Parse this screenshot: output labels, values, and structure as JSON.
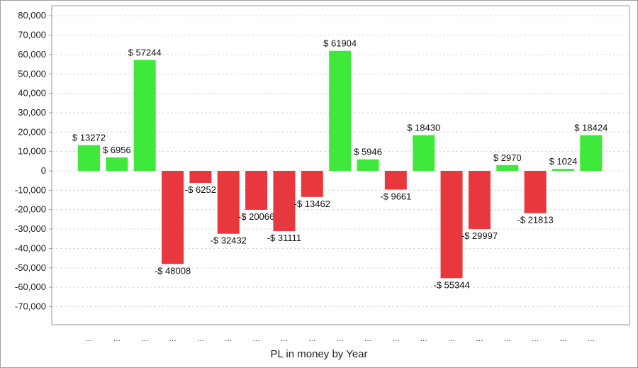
{
  "colors": {
    "positive": "#3fe93b",
    "negative": "#e8383d",
    "grid": "#d8d8d8",
    "axis": "#9a9a9a"
  },
  "chart_data": {
    "type": "bar",
    "title": "",
    "xlabel": "PL in money by Year",
    "ylabel": "",
    "ylim": [
      -80000,
      80000
    ],
    "yticks": [
      80000,
      70000,
      60000,
      50000,
      40000,
      30000,
      20000,
      10000,
      0,
      -10000,
      -20000,
      -30000,
      -40000,
      -50000,
      -60000,
      -70000
    ],
    "ytick_labels": [
      "80,000",
      "70,000",
      "60,000",
      "50,000",
      "40,000",
      "30,000",
      "20,000",
      "10,000",
      "0",
      "-10,000",
      "-20,000",
      "-30,000",
      "-40,000",
      "-50,000",
      "-60,000",
      "-70,000"
    ],
    "grid": true,
    "categories": [
      "...",
      "...",
      "...",
      "...",
      "...",
      "...",
      "...",
      "...",
      "...",
      "...",
      "...",
      "...",
      "...",
      "...",
      "...",
      "...",
      "...",
      "...",
      "..."
    ],
    "values": [
      13272,
      6956,
      57244,
      -48008,
      -6252,
      -32432,
      -20066,
      -31111,
      -13462,
      61904,
      5946,
      -9661,
      18430,
      -55344,
      -29997,
      2970,
      -21813,
      1024,
      18424
    ],
    "data_labels": [
      "$ 13272",
      "$ 6956",
      "$ 57244",
      "-$ 48008",
      "-$ 6252",
      "-$ 32432",
      "-$ 20066",
      "-$ 31111",
      "-$ 13462",
      "$ 61904",
      "$ 5946",
      "-$ 9661",
      "$ 18430",
      "-$ 55344",
      "-$ 29997",
      "$ 2970",
      "-$ 21813",
      "$ 1024",
      "$ 18424"
    ]
  }
}
